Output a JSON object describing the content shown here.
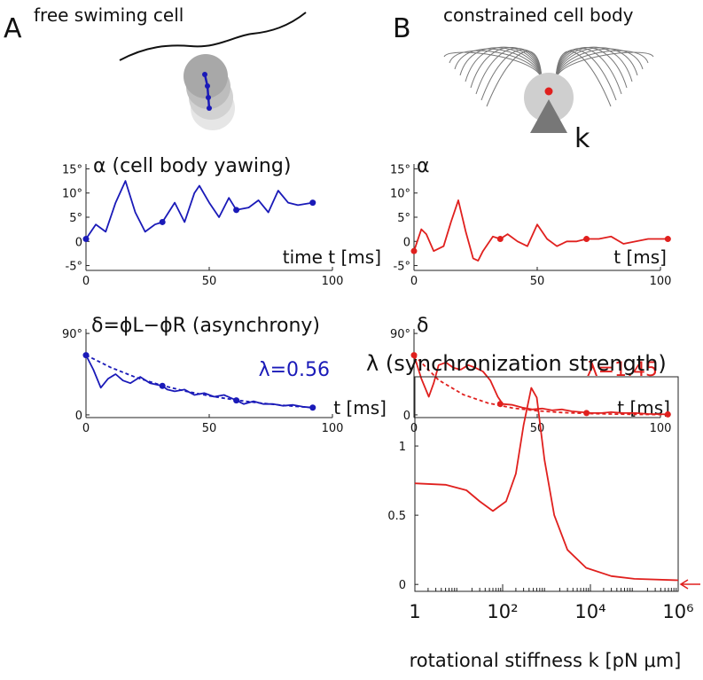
{
  "panels": [
    {
      "letter": "A",
      "title": "free swiming cell"
    },
    {
      "letter": "B",
      "title": "constrained cell body"
    }
  ],
  "diagram": {
    "spring_label": "k"
  },
  "chart_data": [
    {
      "type": "line",
      "title": "α (cell body yawing)",
      "xlabel": "time t [ms]",
      "xlim": [
        0,
        100
      ],
      "xticks": [
        0,
        50,
        100
      ],
      "ylim": [
        -6,
        16
      ],
      "yticks": [
        {
          "value": -5,
          "label": "-5°"
        },
        0,
        {
          "value": 5,
          "label": "5°"
        },
        {
          "value": 10,
          "label": "10°"
        },
        {
          "value": 15,
          "label": "15°"
        }
      ],
      "series": [
        {
          "color": "#1a1ab8",
          "style": "solid",
          "x": [
            0,
            4,
            8,
            12,
            16,
            20,
            24,
            28,
            31,
            36,
            40,
            44,
            46,
            50,
            54,
            58,
            61,
            66,
            70,
            74,
            78,
            82,
            86,
            92
          ],
          "values": [
            0.5,
            3.5,
            2,
            8,
            12.5,
            6,
            2,
            3.5,
            4,
            8,
            4,
            10,
            11.5,
            8,
            5,
            9,
            6.5,
            7,
            8.5,
            6,
            10.5,
            8,
            7.5,
            8
          ]
        }
      ],
      "markers": {
        "color": "#1a1ab8",
        "x": [
          0,
          31,
          61,
          92
        ],
        "values": [
          0.5,
          4,
          6.5,
          8
        ]
      }
    },
    {
      "type": "line",
      "title": "δ=ϕL−ϕR (asynchrony)",
      "xlabel": "t [ms]",
      "annotation": "λ=0.56",
      "annotation_color": "#1a1ab8",
      "xlim": [
        0,
        100
      ],
      "xticks": [
        0,
        50,
        100
      ],
      "ylim": [
        -3,
        95
      ],
      "yticks": [
        0,
        {
          "value": 90,
          "label": "90°"
        }
      ],
      "series": [
        {
          "color": "#1a1ab8",
          "style": "solid",
          "x": [
            0,
            3,
            6,
            9,
            12,
            15,
            18,
            22,
            26,
            31,
            33,
            36,
            40,
            44,
            48,
            52,
            56,
            61,
            64,
            68,
            72,
            76,
            80,
            84,
            88,
            92
          ],
          "values": [
            66,
            50,
            30,
            40,
            45,
            38,
            35,
            42,
            35,
            32,
            28,
            26,
            28,
            22,
            24,
            20,
            22,
            16,
            12,
            15,
            12,
            12,
            10,
            11,
            9,
            8
          ]
        },
        {
          "color": "#1a1ab8",
          "style": "dashed",
          "x": [
            0,
            10,
            20,
            30,
            40,
            50,
            60,
            70,
            80,
            90,
            92
          ],
          "values": [
            66,
            52.5,
            41.7,
            33.2,
            26.4,
            21,
            16.7,
            13.3,
            10.5,
            8.4,
            8
          ]
        }
      ],
      "markers": {
        "color": "#1a1ab8",
        "x": [
          0,
          31,
          61,
          92
        ],
        "values": [
          66,
          32,
          16,
          8
        ]
      }
    },
    {
      "type": "line",
      "title": "α",
      "xlabel": "t [ms]",
      "xlim": [
        0,
        100
      ],
      "xticks": [
        0,
        50,
        100
      ],
      "ylim": [
        -6,
        16
      ],
      "yticks": [
        {
          "value": -5,
          "label": "-5°"
        },
        0,
        {
          "value": 5,
          "label": "5°"
        },
        {
          "value": 10,
          "label": "10°"
        },
        {
          "value": 15,
          "label": "15°"
        }
      ],
      "series": [
        {
          "color": "#e0201e",
          "style": "solid",
          "x": [
            0,
            3,
            5,
            8,
            12,
            15,
            18,
            21,
            24,
            26,
            28,
            32,
            35,
            38,
            42,
            46,
            50,
            54,
            58,
            62,
            66,
            70,
            75,
            80,
            85,
            90,
            95,
            103
          ],
          "values": [
            -2,
            2.5,
            1.5,
            -2,
            -1,
            4,
            8.5,
            2,
            -3.5,
            -4,
            -2,
            1,
            0.5,
            1.5,
            0,
            -1,
            3.5,
            0.5,
            -1,
            0,
            0,
            0.5,
            0.5,
            1,
            -0.5,
            0,
            0.5,
            0.5
          ]
        }
      ],
      "markers": {
        "color": "#e0201e",
        "x": [
          0,
          35,
          70,
          103
        ],
        "values": [
          -2,
          0.5,
          0.5,
          0.5
        ]
      }
    },
    {
      "type": "line",
      "title": "δ",
      "xlabel": "t [ms]",
      "annotation": "λ=1.45",
      "annotation_color": "#e0201e",
      "xlim": [
        0,
        100
      ],
      "xticks": [
        0,
        50,
        100
      ],
      "ylim": [
        -3,
        95
      ],
      "yticks": [
        0,
        {
          "value": 90,
          "label": "90°"
        }
      ],
      "series": [
        {
          "color": "#e0201e",
          "style": "solid",
          "x": [
            0,
            3,
            6,
            8,
            10,
            13,
            16,
            19,
            22,
            25,
            28,
            31,
            34,
            36,
            40,
            44,
            48,
            52,
            56,
            60,
            64,
            68,
            72,
            76,
            80,
            85,
            90,
            95,
            103
          ],
          "values": [
            66,
            40,
            20,
            35,
            55,
            58,
            52,
            50,
            55,
            52,
            48,
            38,
            20,
            12,
            11,
            8,
            6,
            7,
            5,
            6,
            4,
            3,
            2,
            2,
            3,
            2,
            2,
            1,
            0.5
          ]
        },
        {
          "color": "#e0201e",
          "style": "dashed",
          "x": [
            0,
            10,
            20,
            30,
            40,
            50,
            60,
            70,
            80,
            90,
            103
          ],
          "values": [
            66,
            38.5,
            22.4,
            13.1,
            7.6,
            4.4,
            2.6,
            1.5,
            0.9,
            0.5,
            0.25
          ]
        }
      ],
      "markers": {
        "color": "#e0201e",
        "x": [
          0,
          35,
          70,
          103
        ],
        "values": [
          66,
          12,
          2,
          0.5
        ]
      }
    },
    {
      "type": "line",
      "title": "λ (synchronization strength)",
      "xlabel": "rotational stiffness k [pN μm]",
      "xscale": "log",
      "frame": true,
      "xlim": [
        1,
        1000000
      ],
      "xticks": [
        1,
        {
          "value": 100,
          "label": "10²"
        },
        {
          "value": 10000,
          "label": "10⁴"
        },
        {
          "value": 1000000,
          "label": "10⁶"
        }
      ],
      "ylim": [
        -0.05,
        1.5
      ],
      "yticks": [
        0,
        0.5,
        1
      ],
      "series": [
        {
          "color": "#e0201e",
          "style": "solid",
          "x": [
            1,
            5,
            15,
            30,
            60,
            120,
            200,
            300,
            450,
            600,
            900,
            1500,
            3000,
            8000,
            30000,
            100000,
            1000000
          ],
          "values": [
            0.73,
            0.72,
            0.68,
            0.6,
            0.53,
            0.6,
            0.8,
            1.15,
            1.42,
            1.35,
            0.9,
            0.5,
            0.25,
            0.12,
            0.06,
            0.04,
            0.03
          ]
        }
      ]
    }
  ]
}
